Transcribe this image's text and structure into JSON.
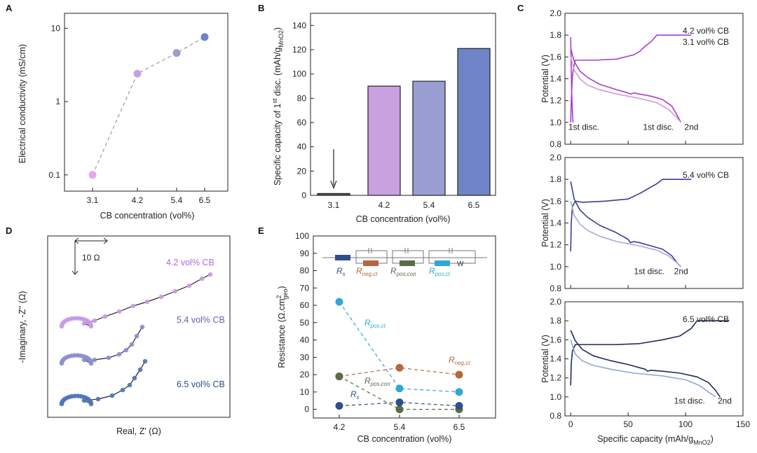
{
  "colors": {
    "c31": "#e9a6e8",
    "c42": "#c9a1e0",
    "c54": "#9a9ed2",
    "c65": "#6f83c7",
    "dash": "#9a9a9a",
    "purple": "#a83ec9",
    "lightpurple": "#d19ad6",
    "blue": "#3a3a9e",
    "lightblue": "#a8a8dd",
    "navy": "#1f2a5a",
    "lightnavy": "#8ea6d9",
    "rs": "#2f4f8a",
    "rneg": "#b5673d",
    "rpos_con": "#5d6a47",
    "rpos_ct": "#2fa8d6",
    "bar31": "#555555"
  },
  "chart_data": [
    {
      "panel": "A",
      "type": "scatter",
      "xlabel": "CB concentration (vol%)",
      "ylabel": "Electrical conductivity (mS/cm)",
      "yscale": "log",
      "ylim": [
        0.06,
        16
      ],
      "categories": [
        "3.1",
        "4.2",
        "5.4",
        "6.5"
      ],
      "values": [
        0.1,
        2.4,
        4.6,
        7.6
      ],
      "yticks": [
        {
          "v": 0.1,
          "label": "0.1"
        },
        {
          "v": 1,
          "label": "1"
        },
        {
          "v": 10,
          "label": "10"
        }
      ]
    },
    {
      "panel": "B",
      "type": "bar",
      "xlabel": "CB concentration (vol%)",
      "ylabel": "Specific capacity of 1",
      "ylabel_sup": "st",
      "ylabel_rest": " disc. (mAh/g",
      "ylabel_sub": "MnO2",
      "ylabel_end": ")",
      "ylim": [
        0,
        150
      ],
      "categories": [
        "3.1",
        "4.2",
        "5.4",
        "6.5"
      ],
      "values": [
        1.5,
        90,
        94,
        121
      ],
      "yticks": [
        "0",
        "20",
        "40",
        "60",
        "80",
        "100",
        "120",
        "140"
      ]
    },
    {
      "panel": "C",
      "type": "line",
      "xlabel": "Specific capacity (mAh/g",
      "xlabel_sub": "MnO2",
      "xlabel_end": ")",
      "ylabel": "Potential (V)",
      "xlim": [
        -5,
        150
      ],
      "ylim": [
        0.8,
        2.0
      ],
      "xticks": [
        "0",
        "50",
        "100",
        "150"
      ],
      "yticks": [
        "0.8",
        "1.0",
        "1.2",
        "1.4",
        "1.6",
        "1.8",
        "2.0"
      ],
      "subplots": [
        {
          "labels": [
            "4.2 vol% CB",
            "3.1 vol% CB"
          ],
          "annotations": [
            "1st disc.",
            "1st disc.",
            "2nd"
          ],
          "series": [
            {
              "name": "3.1 vol% CB 1st disc.",
              "x": [
                0,
                0.3,
                0.8,
                1.5,
                2.0
              ],
              "y": [
                1.78,
                1.6,
                1.3,
                1.1,
                1.0
              ]
            },
            {
              "name": "3.1 vol% CB charge",
              "x": [
                0,
                0.5,
                1.5,
                2.5,
                4,
                20,
                40,
                55,
                60,
                65,
                70,
                75,
                95,
                105
              ],
              "y": [
                1.0,
                1.2,
                1.42,
                1.5,
                1.57,
                1.57,
                1.58,
                1.62,
                1.65,
                1.7,
                1.74,
                1.8,
                1.8,
                1.8
              ]
            },
            {
              "name": "4.2 vol% CB 2nd disc.",
              "x": [
                0,
                3,
                8,
                15,
                25,
                40,
                50,
                52,
                55,
                60,
                70,
                80,
                88,
                93,
                96
              ],
              "y": [
                1.68,
                1.56,
                1.47,
                1.41,
                1.35,
                1.3,
                1.27,
                1.26,
                1.27,
                1.26,
                1.24,
                1.21,
                1.15,
                1.06,
                1.0
              ]
            },
            {
              "name": "4.2 vol% CB 1st disc.",
              "x": [
                0,
                3,
                8,
                15,
                25,
                40,
                60,
                75,
                85,
                92,
                96
              ],
              "y": [
                1.6,
                1.48,
                1.4,
                1.34,
                1.3,
                1.26,
                1.22,
                1.18,
                1.12,
                1.05,
                1.0
              ]
            }
          ]
        },
        {
          "labels": [
            "5.4 vol% CB"
          ],
          "annotations": [
            "1st disc.",
            "2nd"
          ],
          "series": [
            {
              "name": "5.4 vol% CB charge",
              "x": [
                0,
                0.5,
                1.5,
                4,
                10,
                30,
                50,
                60,
                65,
                70,
                75,
                80,
                95,
                105
              ],
              "y": [
                1.14,
                1.4,
                1.55,
                1.6,
                1.59,
                1.6,
                1.62,
                1.67,
                1.7,
                1.73,
                1.76,
                1.8,
                1.8,
                1.8
              ]
            },
            {
              "name": "5.4 vol% CB 2nd disc.",
              "x": [
                0,
                3,
                8,
                15,
                25,
                40,
                50,
                52,
                55,
                60,
                70,
                80,
                88,
                93,
                96
              ],
              "y": [
                1.78,
                1.62,
                1.52,
                1.45,
                1.38,
                1.31,
                1.25,
                1.22,
                1.23,
                1.22,
                1.19,
                1.16,
                1.1,
                1.03,
                1.0
              ]
            },
            {
              "name": "5.4 vol% CB 1st disc.",
              "x": [
                0,
                3,
                8,
                15,
                25,
                40,
                60,
                75,
                85,
                92,
                96
              ],
              "y": [
                1.6,
                1.47,
                1.39,
                1.33,
                1.28,
                1.23,
                1.19,
                1.15,
                1.1,
                1.04,
                1.0
              ]
            }
          ]
        },
        {
          "labels": [
            "6.5 vol% CB"
          ],
          "annotations": [
            "1st disc.",
            "2nd"
          ],
          "series": [
            {
              "name": "6.5 vol% CB charge",
              "x": [
                0,
                0.5,
                1.5,
                4,
                10,
                40,
                60,
                80,
                95,
                100,
                105,
                110,
                125,
                138
              ],
              "y": [
                1.12,
                1.35,
                1.48,
                1.55,
                1.55,
                1.55,
                1.56,
                1.6,
                1.64,
                1.68,
                1.72,
                1.8,
                1.8,
                1.8
              ]
            },
            {
              "name": "6.5 vol% CB 2nd disc.",
              "x": [
                0,
                4,
                10,
                20,
                35,
                50,
                65,
                67,
                70,
                80,
                95,
                110,
                120,
                126,
                130
              ],
              "y": [
                1.7,
                1.59,
                1.5,
                1.43,
                1.38,
                1.34,
                1.29,
                1.27,
                1.28,
                1.27,
                1.25,
                1.21,
                1.15,
                1.07,
                1.0
              ]
            },
            {
              "name": "6.5 vol% CB 1st disc.",
              "x": [
                0,
                4,
                10,
                20,
                35,
                55,
                80,
                100,
                112,
                120,
                126
              ],
              "y": [
                1.6,
                1.45,
                1.38,
                1.33,
                1.29,
                1.25,
                1.22,
                1.18,
                1.12,
                1.05,
                1.0
              ]
            }
          ]
        }
      ]
    },
    {
      "panel": "D",
      "type": "scatter",
      "xlabel": "Real, Z' (Ω)",
      "ylabel": "-Imaginary, -Z'' (Ω)",
      "scale_label": "10 Ω",
      "labels": [
        "4.2 vol% CB",
        "5.4 vol% CB",
        "6.5 vol% CB"
      ]
    },
    {
      "panel": "E",
      "type": "line",
      "xlabel": "CB concentration (vol%)",
      "ylabel": "Resistance (Ω.cm",
      "ylabel_sup": "2",
      "ylabel_sub": "geo",
      "ylabel_end": ")",
      "ylim": [
        -5,
        100
      ],
      "categories": [
        "4.2",
        "5.4",
        "6.5"
      ],
      "yticks": [
        "0",
        "10",
        "20",
        "30",
        "40",
        "50",
        "60",
        "70",
        "80",
        "90",
        "100"
      ],
      "series": [
        {
          "name": "R_pos,ct",
          "values": [
            62,
            12,
            10
          ]
        },
        {
          "name": "R_neg,ct",
          "values": [
            19,
            24,
            20
          ]
        },
        {
          "name": "R_pos,con",
          "values": [
            19,
            0,
            0
          ]
        },
        {
          "name": "R_s",
          "values": [
            2,
            4,
            2
          ]
        }
      ],
      "circuit_labels": [
        {
          "main": "R",
          "sub": "s"
        },
        {
          "main": "R",
          "sub": "neg,ct"
        },
        {
          "main": "R",
          "sub": "pos,con"
        },
        {
          "main": "R",
          "sub": "pos,ct"
        }
      ],
      "warburg": "W",
      "series_labels": [
        {
          "main": "R",
          "sub": "pos,ct"
        },
        {
          "main": "R",
          "sub": "neg,ct"
        },
        {
          "main": "R",
          "sub": "pos,con"
        },
        {
          "main": "R",
          "sub": "s"
        }
      ]
    }
  ]
}
